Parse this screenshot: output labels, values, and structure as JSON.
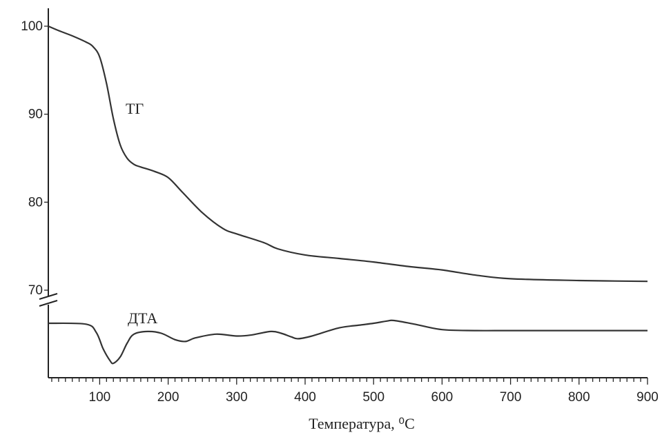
{
  "chart_data": {
    "type": "line",
    "title": "",
    "xlabel": "Температура, ⁰C",
    "ylabel": "",
    "xlim": [
      25,
      900
    ],
    "ylim": [
      70,
      100
    ],
    "x_ticks": [
      "100",
      "200",
      "300",
      "400",
      "500",
      "600",
      "700",
      "800",
      "900"
    ],
    "y_ticks": [
      "70",
      "80",
      "90",
      "100"
    ],
    "grid": false,
    "axis_break": true,
    "series": [
      {
        "name": "ТГ",
        "x": [
          25,
          40,
          60,
          80,
          90,
          100,
          110,
          120,
          130,
          140,
          150,
          160,
          180,
          200,
          220,
          250,
          280,
          300,
          340,
          360,
          400,
          450,
          500,
          550,
          600,
          650,
          700,
          800,
          900
        ],
        "y": [
          100,
          99.5,
          98.9,
          98.2,
          97.7,
          96.5,
          93.5,
          89.5,
          86.5,
          85.0,
          84.3,
          84.0,
          83.5,
          82.8,
          81.2,
          78.8,
          77.0,
          76.4,
          75.4,
          74.7,
          74.0,
          73.6,
          73.2,
          72.7,
          72.3,
          71.7,
          71.3,
          71.1,
          71.0
        ]
      },
      {
        "name": "ДТА",
        "x": [
          25,
          80,
          95,
          105,
          115,
          120,
          130,
          140,
          150,
          170,
          190,
          210,
          225,
          240,
          270,
          300,
          320,
          350,
          365,
          380,
          390,
          410,
          450,
          480,
          500,
          520,
          530,
          560,
          600,
          650,
          700,
          800,
          900
        ],
        "y": [
          0,
          -0.1,
          -1.0,
          -2.8,
          -4.1,
          -4.4,
          -3.7,
          -2.2,
          -1.2,
          -0.9,
          -1.1,
          -1.8,
          -2.0,
          -1.6,
          -1.2,
          -1.4,
          -1.3,
          -0.9,
          -1.1,
          -1.5,
          -1.7,
          -1.4,
          -0.5,
          -0.2,
          0.0,
          0.25,
          0.3,
          -0.1,
          -0.7,
          -0.8,
          -0.8,
          -0.8,
          -0.8
        ]
      }
    ]
  }
}
